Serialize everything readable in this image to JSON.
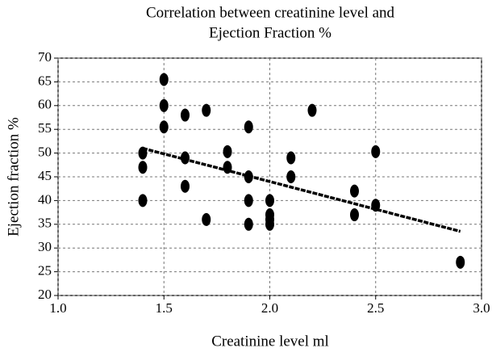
{
  "chart_data": {
    "type": "scatter",
    "title": [
      "Correlation between creatinine level and",
      "Ejection Fraction %"
    ],
    "x_label": "Creatinine level ml",
    "y_label": "Ejection fraction %",
    "x": [
      1.4,
      1.4,
      1.4,
      1.5,
      1.5,
      1.5,
      1.6,
      1.6,
      1.6,
      1.7,
      1.7,
      1.8,
      1.8,
      1.9,
      1.9,
      1.9,
      1.9,
      2.0,
      2.0,
      2.0,
      2.0,
      2.1,
      2.1,
      2.2,
      2.4,
      2.4,
      2.5,
      2.5,
      2.9
    ],
    "values": [
      50,
      47,
      40,
      65.5,
      60,
      55.5,
      58,
      49,
      43,
      59,
      36,
      50.3,
      47,
      55.5,
      45,
      40,
      35,
      40,
      37,
      36,
      35,
      49,
      45,
      59,
      42,
      37,
      50.3,
      39,
      27
    ],
    "color": "#000000",
    "trendline": {
      "x": [
        1.4,
        2.9
      ],
      "values": [
        51,
        33.5
      ],
      "color": "#000000"
    },
    "xlim": [
      1.0,
      3.0
    ],
    "xticks": [
      {
        "value": 1.0,
        "label": "1.0"
      },
      {
        "value": 1.5,
        "label": "1.5"
      },
      {
        "value": 2.0,
        "label": "2.0"
      },
      {
        "value": 2.5,
        "label": "2.5"
      },
      {
        "value": 3.0,
        "label": "3.0"
      }
    ],
    "ylim": [
      20,
      70
    ],
    "yticks": [
      20,
      25,
      30,
      35,
      40,
      45,
      50,
      55,
      60,
      65,
      70
    ],
    "grid": true
  }
}
